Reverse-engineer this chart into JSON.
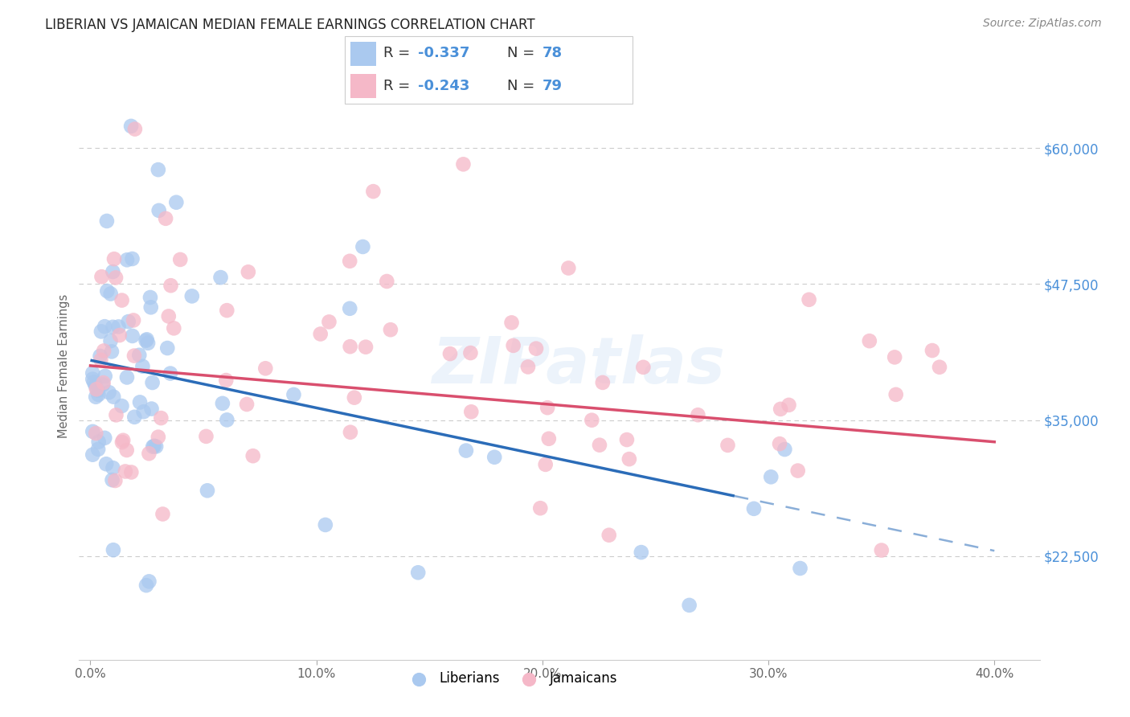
{
  "title": "LIBERIAN VS JAMAICAN MEDIAN FEMALE EARNINGS CORRELATION CHART",
  "source": "Source: ZipAtlas.com",
  "ylabel": "Median Female Earnings",
  "xlim": [
    -0.005,
    0.42
  ],
  "ylim": [
    13000,
    67000
  ],
  "yticks": [
    22500,
    35000,
    47500,
    60000
  ],
  "ytick_labels": [
    "$22,500",
    "$35,000",
    "$47,500",
    "$60,000"
  ],
  "xtick_labels": [
    "0.0%",
    "10.0%",
    "20.0%",
    "30.0%",
    "40.0%"
  ],
  "xticks": [
    0.0,
    0.1,
    0.2,
    0.3,
    0.4
  ],
  "liberian_color": "#aac9ef",
  "jamaican_color": "#f5b8c8",
  "liberian_line_color": "#2b6cb8",
  "jamaican_line_color": "#d94f6e",
  "watermark": "ZIPatlas",
  "watermark_color": "#4a90d9",
  "title_color": "#222222",
  "source_color": "#888888",
  "tick_color": "#4a90d9",
  "ylabel_color": "#666666",
  "xtick_color": "#666666",
  "grid_color": "#cccccc",
  "legend_border_color": "#cccccc",
  "legend_text_color": "#333333",
  "legend_num_color": "#4a90d9",
  "lib_r": "-0.337",
  "lib_n": "78",
  "jam_r": "-0.243",
  "jam_n": "79",
  "lib_trend_x0": 0.0,
  "lib_trend_y0": 40500,
  "lib_trend_x1": 0.4,
  "lib_trend_y1": 23000,
  "lib_solid_xend": 0.285,
  "jam_trend_x0": 0.0,
  "jam_trend_y0": 40000,
  "jam_trend_x1": 0.4,
  "jam_trend_y1": 33000
}
